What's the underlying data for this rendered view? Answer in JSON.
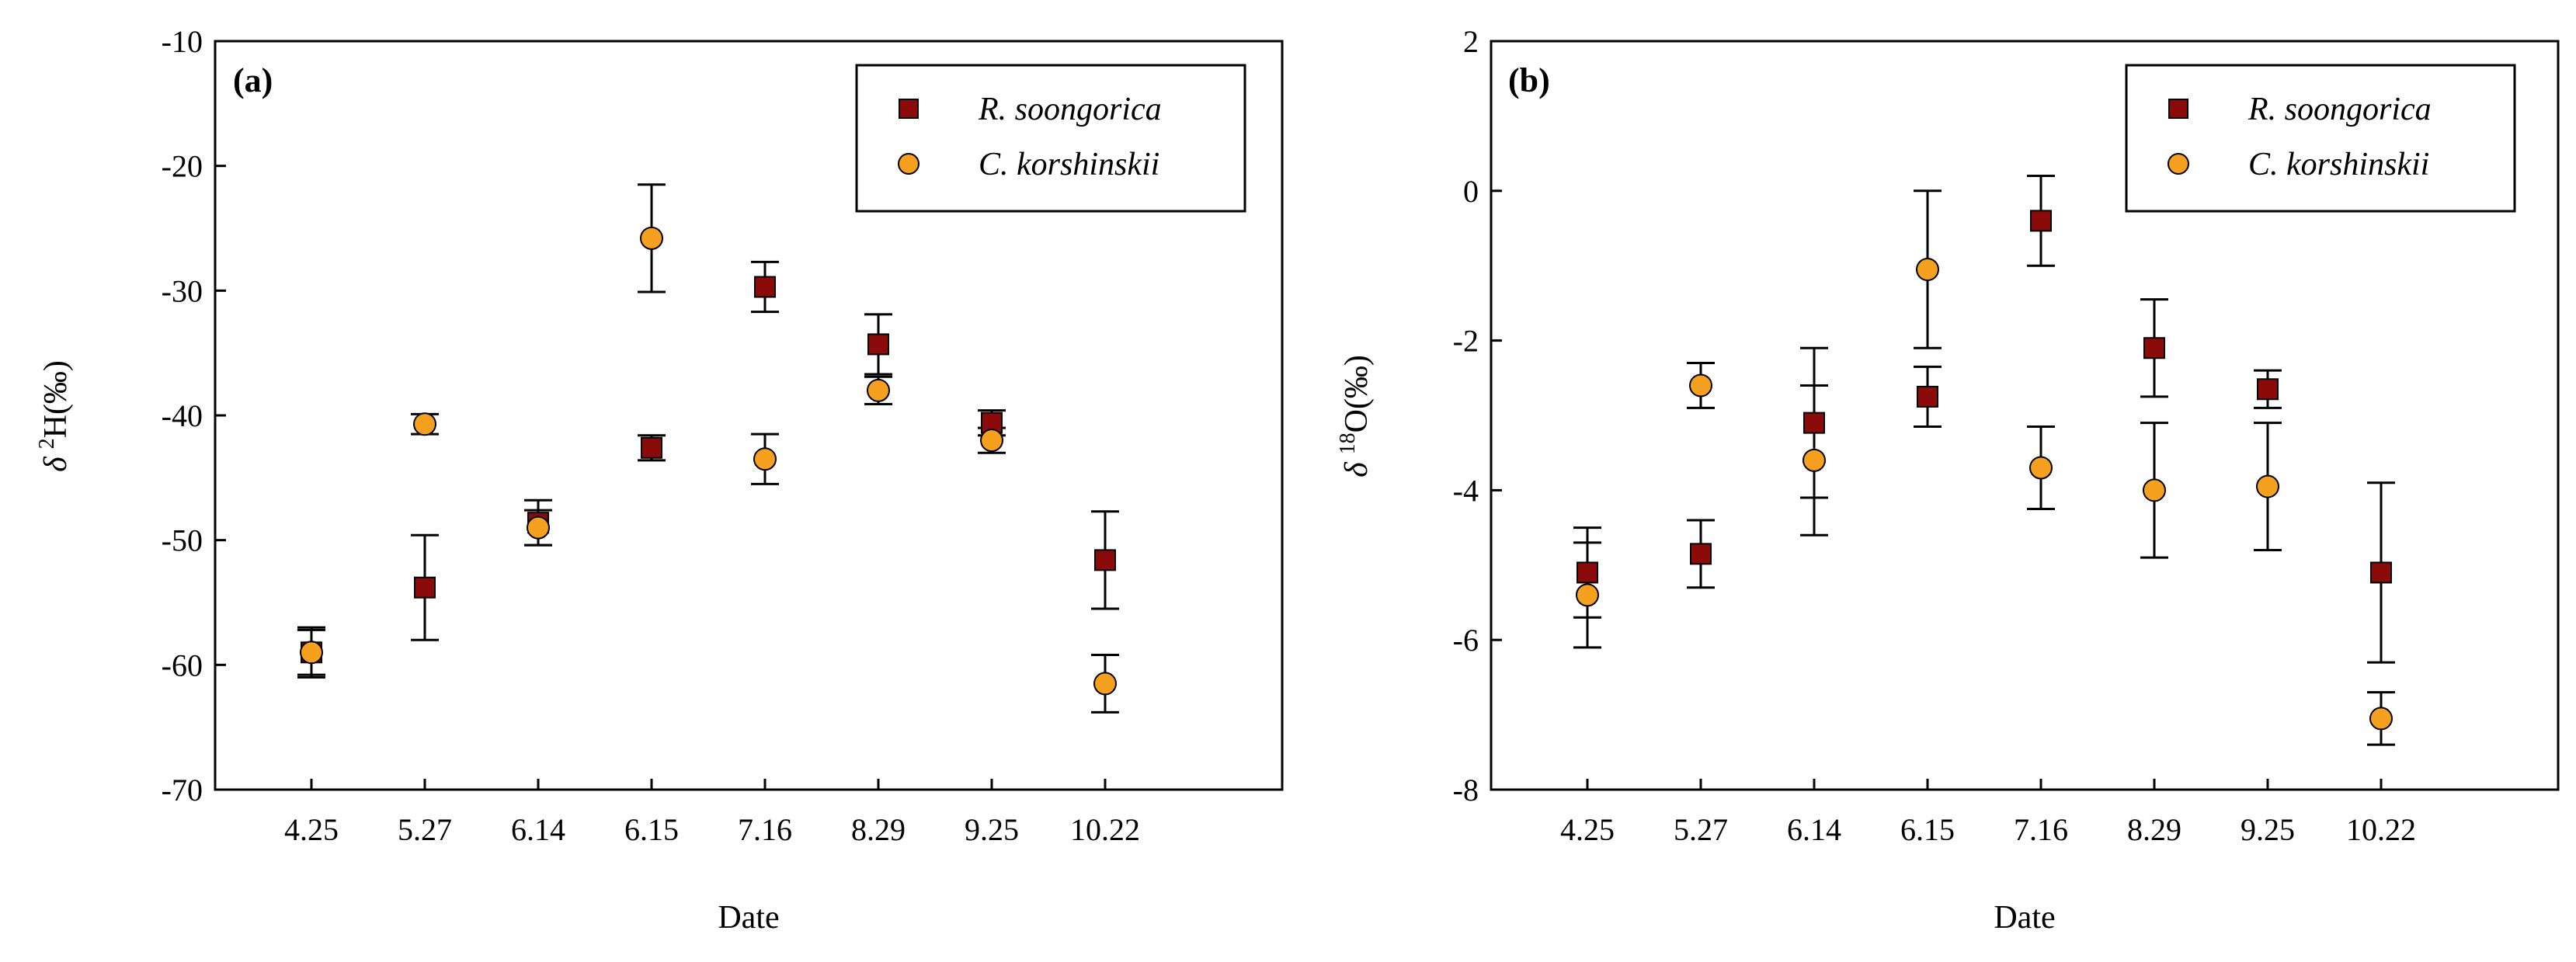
{
  "chart_data": [
    {
      "type": "scatter",
      "panel": "(a)",
      "categories": [
        "4.25",
        "5.27",
        "6.14",
        "6.15",
        "7.16",
        "8.29",
        "9.25",
        "10.22"
      ],
      "xlabel": "Date",
      "ylabel_symbol": "δ",
      "ylabel_sup": "2",
      "ylabel_text": "H(‰)",
      "ylim": [
        -70,
        -10
      ],
      "yticks": [
        -70,
        -60,
        -50,
        -40,
        -30,
        -20,
        -10
      ],
      "legend_position": "top-right",
      "series": [
        {
          "name": "R. soongorica",
          "marker": "square",
          "color": "#8b0a0a",
          "values": [
            -59,
            -53.8,
            -48.6,
            -42.6,
            -29.7,
            -34.3,
            -40.6,
            -51.6
          ],
          "errors": [
            2,
            4.2,
            1.8,
            1,
            2,
            2.4,
            1,
            3.9
          ]
        },
        {
          "name": "C. korshinskii",
          "marker": "circle",
          "color": "#f5a01e",
          "values": [
            -59,
            -40.7,
            -49,
            -25.8,
            -43.5,
            -38,
            -42,
            -61.5
          ],
          "errors": [
            1.8,
            0.8,
            1.4,
            4.3,
            2,
            1.1,
            1,
            2.3
          ]
        }
      ]
    },
    {
      "type": "scatter",
      "panel": "(b)",
      "categories": [
        "4.25",
        "5.27",
        "6.14",
        "6.15",
        "7.16",
        "8.29",
        "9.25",
        "10.22"
      ],
      "xlabel": "Date",
      "ylabel_symbol": "δ",
      "ylabel_sup": "18",
      "ylabel_text": "O(‰)",
      "ylim": [
        -8,
        2
      ],
      "yticks": [
        -8,
        -6,
        -4,
        -2,
        0,
        2
      ],
      "legend_position": "top-right",
      "series": [
        {
          "name": "R. soongorica",
          "marker": "square",
          "color": "#8b0a0a",
          "values": [
            -5.1,
            -4.85,
            -3.1,
            -2.75,
            -0.4,
            -2.1,
            -2.65,
            -5.1
          ],
          "errors": [
            0.6,
            0.45,
            1,
            0.4,
            0.6,
            0.65,
            0.25,
            1.2
          ]
        },
        {
          "name": "C. korshinskii",
          "marker": "circle",
          "color": "#f5a01e",
          "values": [
            -5.4,
            -2.6,
            -3.6,
            -1.05,
            -3.7,
            -4,
            -3.95,
            -7.05
          ],
          "errors": [
            0.7,
            0.3,
            1,
            1.05,
            0.55,
            0.9,
            0.85,
            0.35
          ]
        }
      ]
    }
  ]
}
